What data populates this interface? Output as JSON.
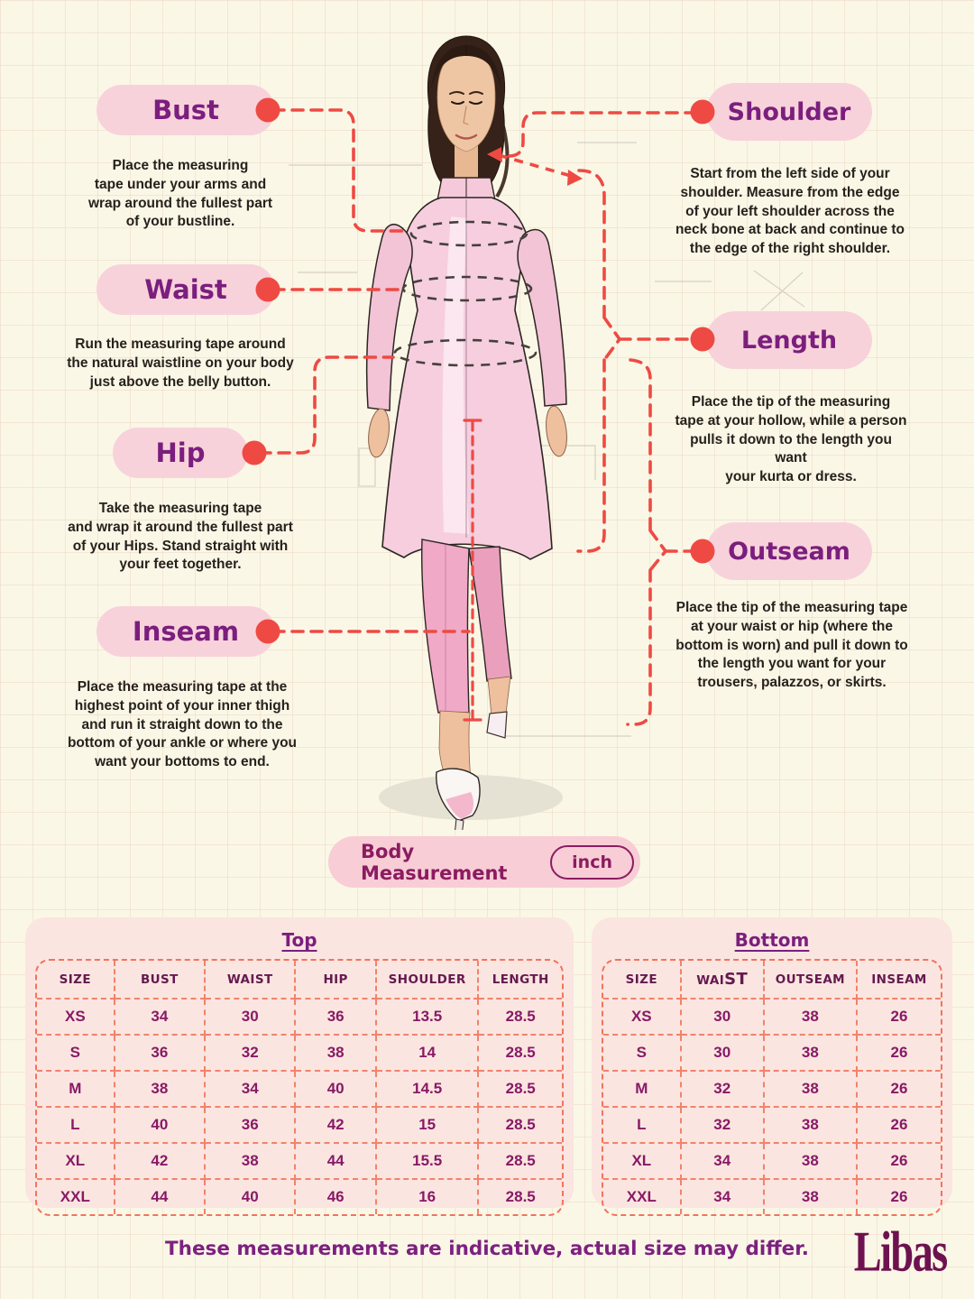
{
  "colors": {
    "background": "#faf7e6",
    "pill_pink": "#f8d2da",
    "card_pink": "#fbe5e0",
    "accent_red": "#ee4a43",
    "table_dash_red": "#f0745e",
    "label_purple": "#7b1e7e",
    "value_magenta": "#871a66",
    "text_ink": "#26211d"
  },
  "callouts": {
    "bust": {
      "label": "Bust",
      "description": "Place the measuring\ntape under your arms and\nwrap around the fullest part\nof your bustline."
    },
    "waist": {
      "label": "Waist",
      "description": "Run the measuring tape around\nthe natural waistline on your body\njust above the belly button."
    },
    "hip": {
      "label": "Hip",
      "description": "Take the measuring tape\nand wrap it around the fullest part\nof your Hips. Stand straight with\nyour feet together."
    },
    "inseam": {
      "label": "Inseam",
      "description": "Place the measuring tape at the\nhighest point of your inner thigh\nand run it straight down to the\nbottom of your ankle or where you\nwant your bottoms to end."
    },
    "shoulder": {
      "label": "Shoulder",
      "description": "Start from the left side of your\nshoulder. Measure from the edge\nof your left shoulder across the\nneck bone at back and continue to\nthe edge of the right shoulder."
    },
    "length": {
      "label": "Length",
      "description": "Place the tip of the measuring\ntape at your hollow, while a person\npulls it down to the length you want\nyour kurta or dress."
    },
    "outseam": {
      "label": "Outseam",
      "description": "Place the tip of the measuring tape\nat your waist or hip (where the\nbottom is worn) and pull it down to\nthe length you want for your\ntrousers, palazzos, or skirts."
    }
  },
  "body_measurement": {
    "label": "Body Measurement",
    "unit": "inch"
  },
  "tables": {
    "top": {
      "title": "Top",
      "columns": [
        "SIZE",
        "BUST",
        "WAIST",
        "HIP",
        "SHOULDER",
        "LENGTH"
      ],
      "rows": [
        [
          "XS",
          "34",
          "30",
          "36",
          "13.5",
          "28.5"
        ],
        [
          "S",
          "36",
          "32",
          "38",
          "14",
          "28.5"
        ],
        [
          "M",
          "38",
          "34",
          "40",
          "14.5",
          "28.5"
        ],
        [
          "L",
          "40",
          "36",
          "42",
          "15",
          "28.5"
        ],
        [
          "XL",
          "42",
          "38",
          "44",
          "15.5",
          "28.5"
        ],
        [
          "XXL",
          "44",
          "40",
          "46",
          "16",
          "28.5"
        ]
      ]
    },
    "bottom": {
      "title": "Bottom",
      "columns": [
        "SIZE",
        {
          "parts": [
            {
              "t": "WAI"
            },
            {
              "t": "ST",
              "big": true
            }
          ]
        },
        "OUTSEAM",
        "INSEAM"
      ],
      "rows": [
        [
          "XS",
          "30",
          "38",
          "26"
        ],
        [
          "S",
          "30",
          "38",
          "26"
        ],
        [
          "M",
          "32",
          "38",
          "26"
        ],
        [
          "L",
          "32",
          "38",
          "26"
        ],
        [
          "XL",
          "34",
          "38",
          "26"
        ],
        [
          "XXL",
          "34",
          "38",
          "26"
        ]
      ]
    }
  },
  "footer": {
    "note": "These measurements are indicative, actual size may differ.",
    "brand": "Libas"
  }
}
